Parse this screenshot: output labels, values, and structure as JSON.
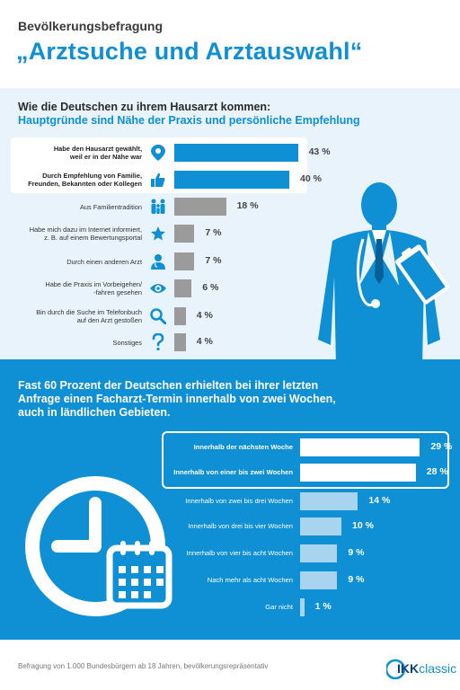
{
  "header": {
    "kicker": "Bevölkerungsbefragung",
    "headline": "„Arztsuche und Arztauswahl“"
  },
  "section1": {
    "title": "Wie die Deutschen zu ihrem Hausarzt kommen:",
    "subtitle": "Hauptgründe sind Nähe der Praxis und persönliche Empfehlung"
  },
  "section2": {
    "title": "Fast 60 Prozent der Deutschen erhielten bei ihrer letzten Anfrage einen Facharzt-Termin innerhalb von zwei Wochen, auch in ländlichen Gebieten."
  },
  "footer": {
    "note": "Befragung von 1.000 Bundesbürgern ab 18 Jahren, bevölkerungsrepräsentativ",
    "logo_ikk": "IKK",
    "logo_classic": "classic"
  },
  "colors": {
    "brand_blue": "#0f8fd4",
    "highlight_bar": "#0f8fd4",
    "regular_bar": "#9b9b9b",
    "sec2_highlight_bar": "#ffffff",
    "sec2_regular_bar": "#a8d4f0"
  },
  "chart_data": [
    {
      "type": "bar",
      "orientation": "horizontal",
      "categories": [
        "Habe den Hausarzt gewählt, weil er in der Nähe war",
        "Durch Empfehlung von Familie, Freunden, Bekannten oder Kollegen",
        "Aus Familientradition",
        "Habe mich dazu im Internet informiert, z. B. auf einem Bewertungsportal",
        "Durch einen anderen Arzt",
        "Habe die Praxis im Vorbeigehen/ -fahren gesehen",
        "Bin durch die Suche im Telefonbuch auf den Arzt gestoßen",
        "Sonstiges"
      ],
      "label_lines": [
        [
          "Habe den Hausarzt gewählt,",
          "weil er in der Nähe war"
        ],
        [
          "Durch Empfehlung von Familie,",
          "Freunden, Bekannten oder Kollegen"
        ],
        [
          "Aus Familientradition"
        ],
        [
          "Habe mich dazu im Internet informiert,",
          "z. B. auf einem Bewertungsportal"
        ],
        [
          "Durch einen anderen Arzt"
        ],
        [
          "Habe die Praxis im Vorbeigehen/",
          "-fahren gesehen"
        ],
        [
          "Bin durch die Suche im Telefonbuch",
          "auf den Arzt gestoßen"
        ],
        [
          "Sonstiges"
        ]
      ],
      "values": [
        43,
        40,
        18,
        7,
        7,
        6,
        4,
        4
      ],
      "value_labels": [
        "43 %",
        "40 %",
        "18 %",
        "7 %",
        "7 %",
        "6 %",
        "4 %",
        "4 %"
      ],
      "highlighted": [
        true,
        true,
        false,
        false,
        false,
        false,
        false,
        false
      ],
      "icons": [
        "location-pin-icon",
        "thumbs-up-icon",
        "family-icon",
        "star-icon",
        "doctor-icon",
        "eye-icon",
        "magnifier-icon",
        "question-mark-icon"
      ],
      "unit": "%"
    },
    {
      "type": "bar",
      "orientation": "horizontal",
      "categories": [
        "Innerhalb der nächsten Woche",
        "Innerhalb von einer bis zwei Wochen",
        "Innerhalb von zwei bis drei Wochen",
        "Innerhalb von drei bis vier Wochen",
        "Innerhalb von vier bis acht Wochen",
        "Nach mehr als acht Wochen",
        "Gar nicht"
      ],
      "values": [
        29,
        28,
        14,
        10,
        9,
        9,
        1
      ],
      "value_labels": [
        "29 %",
        "28 %",
        "14 %",
        "10 %",
        "9 %",
        "9 %",
        "1 %"
      ],
      "highlighted": [
        true,
        true,
        false,
        false,
        false,
        false,
        false
      ],
      "unit": "%"
    }
  ]
}
